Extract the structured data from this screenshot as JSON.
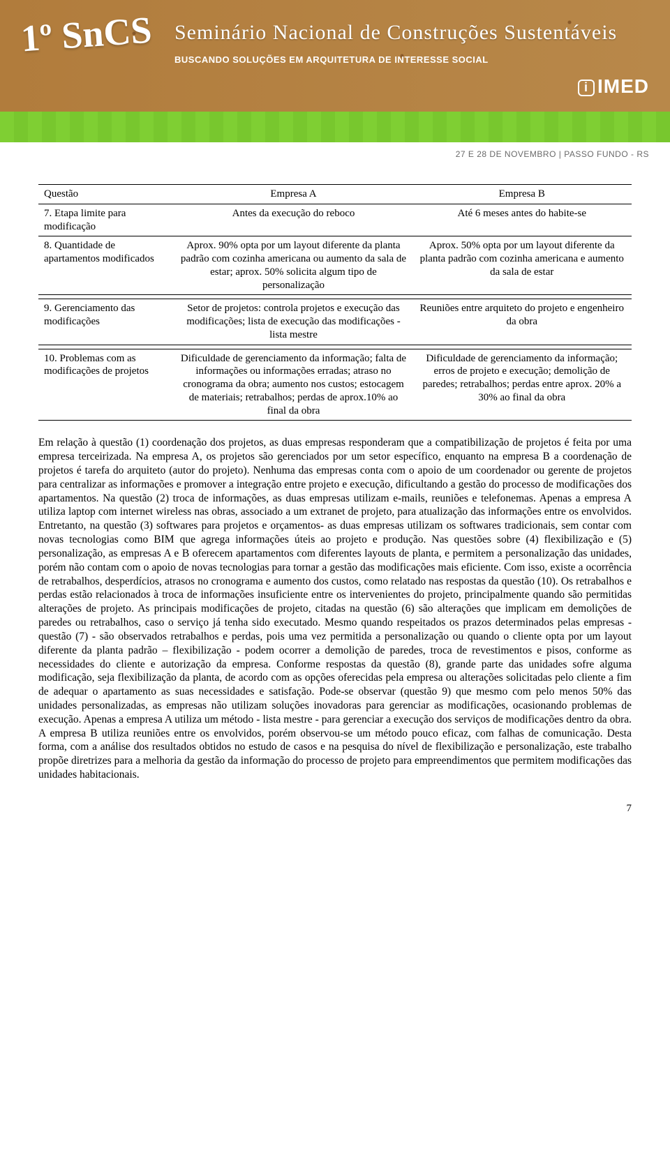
{
  "banner": {
    "sncs": "1º SnCS",
    "headline": "Seminário Nacional de Construções Sustentáveis",
    "subhead": "BUSCANDO SOLUÇÕES EM ARQUITETURA DE INTERESSE SOCIAL",
    "imed": "IMED",
    "date_line": "27 E 28 DE NOVEMBRO  |  PASSO FUNDO - RS",
    "colors": {
      "top_bg_from": "#b17c3c",
      "top_bg_to": "#b8884a",
      "strip": "#7fcf33",
      "strip_alt": "#78c72e",
      "text_white": "#ffffff",
      "date_grey": "#6a6a6a"
    }
  },
  "table": {
    "headers": {
      "q": "Questão",
      "a": "Empresa A",
      "b": "Empresa B"
    },
    "rows": [
      {
        "q": "7. Etapa limite para modificação",
        "a": "Antes da execução do reboco",
        "b": "Até 6 meses antes do habite-se"
      },
      {
        "q": "8. Quantidade de apartamentos modificados",
        "a": "Aprox. 90% opta por um layout diferente da planta padrão com cozinha americana ou aumento da sala de estar; aprox. 50% solicita algum tipo de personalização",
        "b": "Aprox. 50% opta por um layout diferente da planta padrão com cozinha americana e aumento da sala de estar"
      },
      {
        "q": "9. Gerenciamento das modificações",
        "a": "Setor de projetos: controla projetos e execução das modificações; lista de execução das modificações - lista mestre",
        "b": "Reuniões entre arquiteto do projeto e engenheiro da obra"
      },
      {
        "q": "10. Problemas com as modificações de projetos",
        "a": "Dificuldade de gerenciamento da informação; falta de informações ou informações erradas; atraso no cronograma da obra; aumento nos custos; estocagem de materiais; retrabalhos; perdas de aprox.10% ao final da obra",
        "b": "Dificuldade de gerenciamento da informação; erros de projeto e execução; demolição de paredes; retrabalhos; perdas entre aprox. 20% a 30% ao final da obra"
      }
    ]
  },
  "body": "Em relação à questão (1) coordenação dos projetos, as duas empresas responderam que a compatibilização de projetos é feita por uma empresa terceirizada. Na empresa A, os projetos são gerenciados por um setor específico, enquanto na empresa B a coordenação de projetos é tarefa do arquiteto (autor do projeto). Nenhuma das empresas conta com o apoio de um coordenador ou gerente de projetos para centralizar as informações e promover a integração entre projeto e execução, dificultando a gestão do processo de modificações dos apartamentos. Na questão (2) troca de informações, as duas empresas utilizam e-mails, reuniões e telefonemas. Apenas a empresa A utiliza laptop com internet wireless nas obras, associado a um extranet de projeto, para atualização das informações entre os envolvidos. Entretanto, na questão (3) softwares para projetos e orçamentos- as duas empresas utilizam os softwares tradicionais, sem contar com novas tecnologias como BIM que agrega informações úteis ao projeto e produção. Nas questões sobre (4) flexibilização e (5) personalização, as empresas A e B oferecem apartamentos com diferentes layouts de planta, e permitem a personalização das unidades, porém não contam com o apoio de novas tecnologias para tornar a gestão das modificações mais eficiente. Com isso, existe a ocorrência de retrabalhos, desperdícios, atrasos no cronograma e aumento dos custos, como relatado nas respostas da questão (10). Os retrabalhos e perdas estão relacionados à troca de informações insuficiente entre os intervenientes do projeto, principalmente quando são permitidas alterações de projeto. As principais modificações de projeto, citadas na questão (6) são alterações que implicam em demolições de paredes ou retrabalhos, caso o serviço já tenha sido executado. Mesmo quando respeitados os prazos determinados pelas empresas - questão (7) - são observados retrabalhos e perdas, pois uma vez permitida a personalização ou quando o cliente opta por um layout diferente da planta padrão – flexibilização - podem ocorrer a demolição de paredes, troca de revestimentos e pisos, conforme as necessidades do cliente e autorização da empresa. Conforme respostas da questão (8), grande parte das unidades sofre alguma modificação, seja flexibilização da planta, de acordo com as opções oferecidas pela empresa ou alterações solicitadas pelo cliente a fim de adequar o apartamento as suas necessidades e satisfação. Pode-se observar (questão 9) que mesmo com pelo menos 50% das unidades personalizadas, as empresas não utilizam soluções inovadoras para gerenciar as modificações, ocasionando problemas de execução. Apenas a empresa A utiliza um método - lista mestre - para gerenciar a execução dos serviços de modificações dentro da obra. A empresa B utiliza reuniões entre os envolvidos, porém observou-se um método pouco eficaz, com falhas de comunicação. Desta forma, com a análise dos resultados obtidos no estudo de casos e na pesquisa do nível de flexibilização e personalização, este trabalho propõe diretrizes para a melhoria da gestão da informação do processo de projeto para empreendimentos que permitem modificações das unidades habitacionais.",
  "page_number": "7"
}
